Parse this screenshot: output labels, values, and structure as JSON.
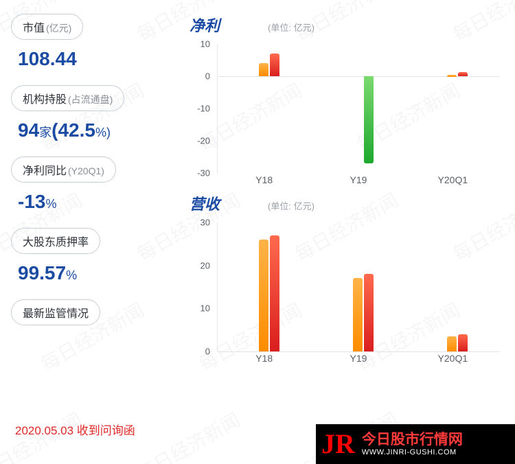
{
  "watermark_text": "每日经济新闻",
  "left": {
    "items": [
      {
        "label": "市值",
        "sub": "(亿元)",
        "value": "108.44",
        "unit": ""
      },
      {
        "label": "机构持股",
        "sub": "(占流通盘)",
        "value": "94",
        "unit": "家",
        "value2": "(42.5",
        "unit2": "%)"
      },
      {
        "label": "净利同比",
        "sub": "(Y20Q1)",
        "value": "-13",
        "unit": "%"
      },
      {
        "label": "大股东质押率",
        "sub": "",
        "value": "99.57",
        "unit": "%"
      },
      {
        "label": "最新监管情况",
        "sub": "",
        "value": "",
        "unit": ""
      }
    ]
  },
  "footer_note": "2020.05.03 收到问询函",
  "charts": {
    "profit": {
      "title": "净利",
      "unit_label": "(单位: 亿元)",
      "ymin": -30,
      "ymax": 10,
      "yticks": [
        10,
        0,
        -10,
        -20,
        -30
      ],
      "baseline": 0,
      "categories": [
        "Y18",
        "Y19",
        "Y20Q1"
      ],
      "bars": [
        {
          "cat": "Y18",
          "a": 4,
          "b": 7,
          "a_grad": [
            "#ffb347",
            "#ff8c00"
          ],
          "b_grad": [
            "#ff6a4d",
            "#d91e1e"
          ]
        },
        {
          "cat": "Y19",
          "a": 0,
          "b": -27,
          "a_grad": [
            "#ffb347",
            "#ff8c00"
          ],
          "b_grad": [
            "#7bd96f",
            "#1ea82e"
          ]
        },
        {
          "cat": "Y20Q1",
          "a": 0.5,
          "b": 1.2,
          "a_grad": [
            "#ffb347",
            "#ff8c00"
          ],
          "b_grad": [
            "#ff6a4d",
            "#d91e1e"
          ]
        }
      ]
    },
    "revenue": {
      "title": "营收",
      "unit_label": "(单位: 亿元)",
      "ymin": 0,
      "ymax": 30,
      "yticks": [
        30,
        20,
        10,
        0
      ],
      "baseline": 0,
      "categories": [
        "Y18",
        "Y19",
        "Y20Q1"
      ],
      "bars": [
        {
          "cat": "Y18",
          "a": 26,
          "b": 27,
          "a_grad": [
            "#ffb347",
            "#ff8c00"
          ],
          "b_grad": [
            "#ff6a4d",
            "#d91e1e"
          ]
        },
        {
          "cat": "Y19",
          "a": 17,
          "b": 18,
          "a_grad": [
            "#ffb347",
            "#ff8c00"
          ],
          "b_grad": [
            "#ff6a4d",
            "#d91e1e"
          ]
        },
        {
          "cat": "Y20Q1",
          "a": 3.5,
          "b": 4,
          "a_grad": [
            "#ffb347",
            "#ff8c00"
          ],
          "b_grad": [
            "#ff6a4d",
            "#d91e1e"
          ]
        }
      ]
    }
  },
  "logo": {
    "jr": "JR",
    "main": "今日股市行情网",
    "sub": "WWW.JINRI-GUSHI.COM"
  },
  "colors": {
    "primary": "#1b4ba3",
    "text": "#2d3238",
    "muted": "#8a8f98",
    "axis": "#5a5f66",
    "grid": "#dfe3e8",
    "alert": "#e02828"
  }
}
